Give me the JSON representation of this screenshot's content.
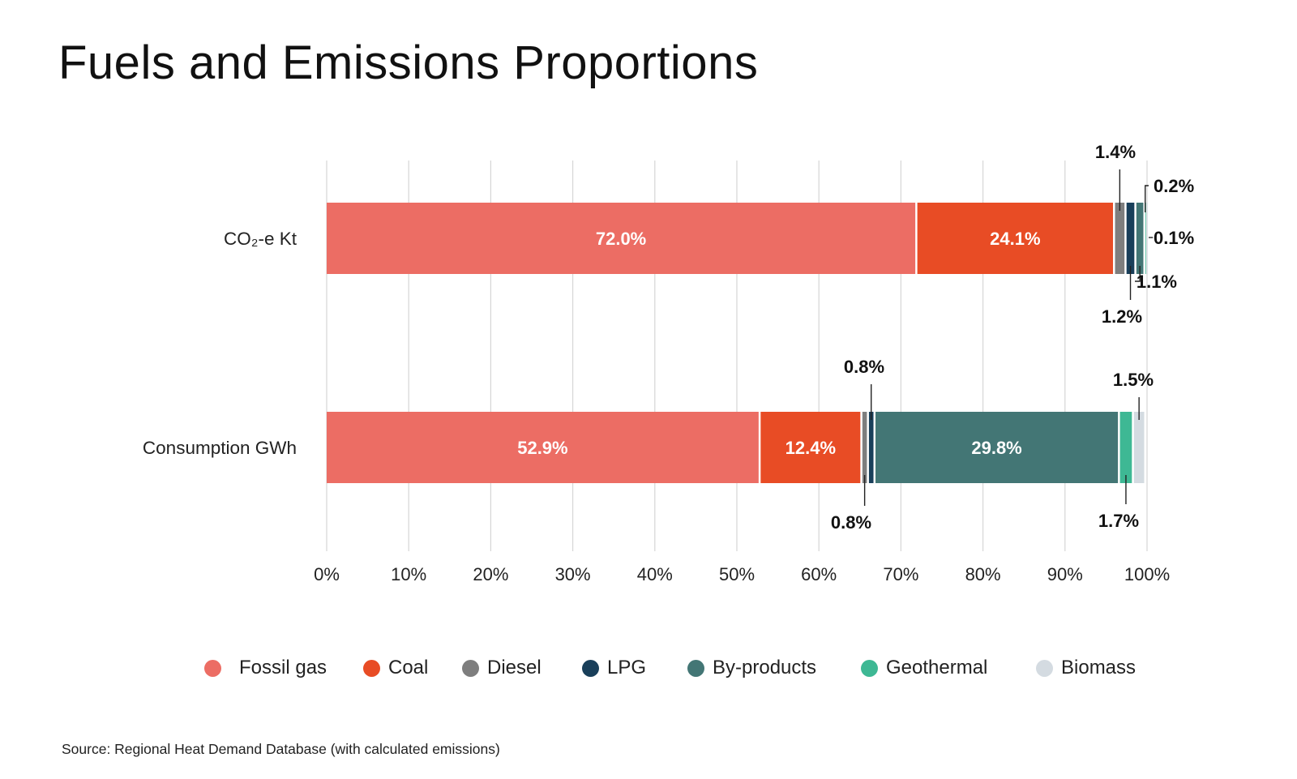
{
  "title": "Fuels and Emissions Proportions",
  "source": "Source: Regional Heat Demand Database (with calculated emissions)",
  "chart_data": {
    "type": "bar",
    "orientation": "horizontal",
    "stacked": true,
    "categories": [
      "CO₂-e Kt",
      "Consumption GWh"
    ],
    "series": [
      {
        "name": "Fossil gas",
        "color": "#ec6d64",
        "values": [
          72.0,
          52.9
        ],
        "labels": [
          "72.0%",
          "52.9%"
        ]
      },
      {
        "name": "Coal",
        "color": "#e84c25",
        "values": [
          24.1,
          12.4
        ],
        "labels": [
          "24.1%",
          "12.4%"
        ]
      },
      {
        "name": "Diesel",
        "color": "#7e7e7e",
        "values": [
          1.4,
          0.8
        ],
        "labels": [
          "1.4%",
          "0.8%"
        ]
      },
      {
        "name": "LPG",
        "color": "#193f5a",
        "values": [
          1.2,
          0.8
        ],
        "labels": [
          "1.2%",
          "0.8%"
        ]
      },
      {
        "name": "By-products",
        "color": "#437675",
        "values": [
          1.1,
          29.8
        ],
        "labels": [
          "1.1%",
          "29.8%"
        ]
      },
      {
        "name": "Geothermal",
        "color": "#3eb894",
        "values": [
          0.2,
          1.7
        ],
        "labels": [
          "0.2%",
          "1.7%"
        ]
      },
      {
        "name": "Biomass",
        "color": "#d4dbe1",
        "values": [
          0.1,
          1.5
        ],
        "labels": [
          "0.1%",
          "1.5%"
        ]
      }
    ],
    "xlim": [
      0,
      100
    ],
    "xticks": [
      "0%",
      "10%",
      "20%",
      "30%",
      "40%",
      "50%",
      "60%",
      "70%",
      "80%",
      "90%",
      "100%"
    ],
    "grid": true,
    "legend_position": "bottom"
  }
}
